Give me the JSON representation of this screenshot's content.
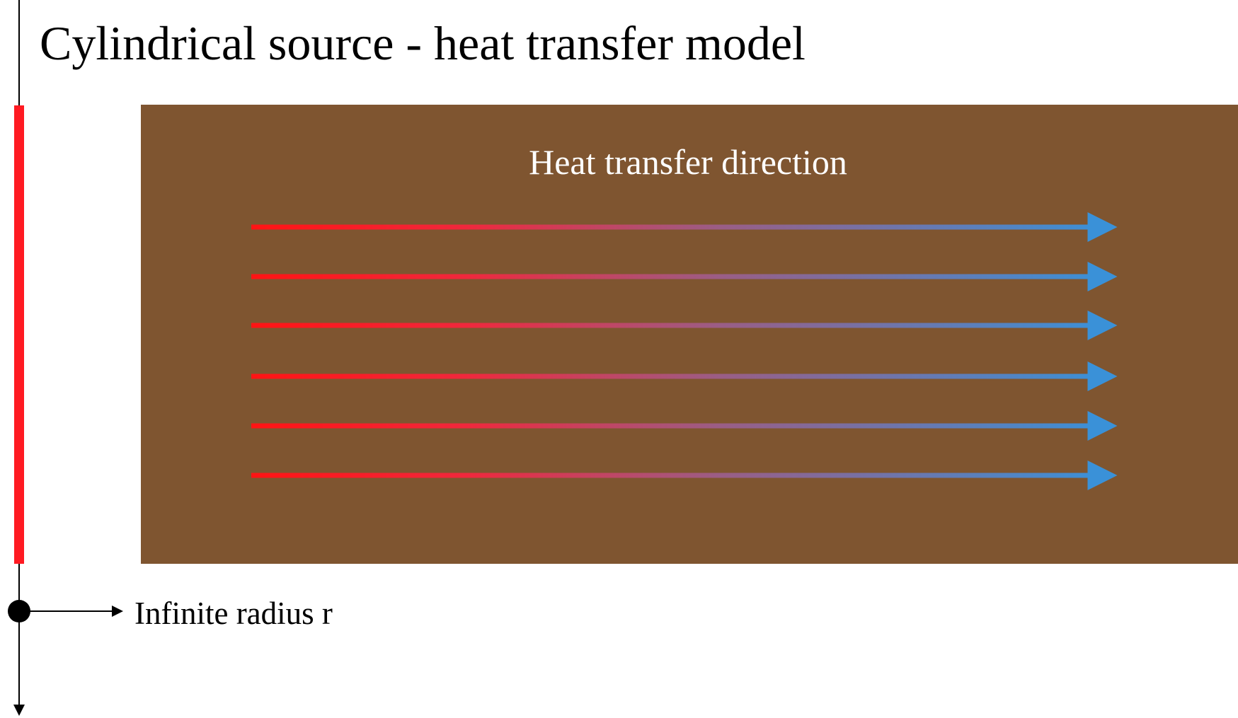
{
  "title": "Cylindrical source - heat transfer model",
  "diagram": {
    "flow_label": "Heat transfer direction",
    "axis_label": "Infinite radius r"
  }
}
